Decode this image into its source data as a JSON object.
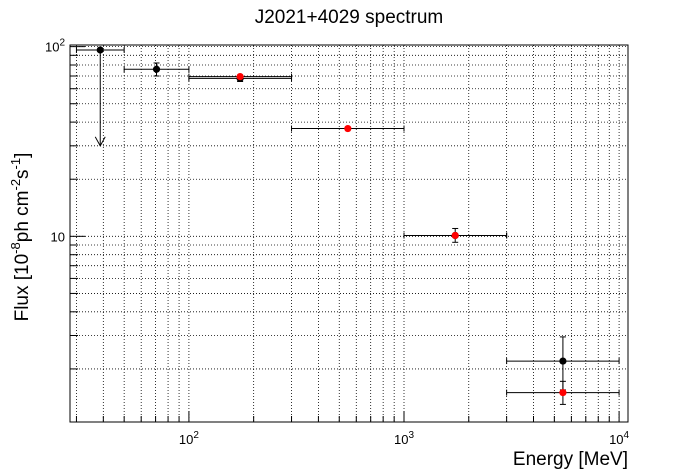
{
  "chart_data": {
    "type": "scatter",
    "title": "J2021+4029 spectrum",
    "xlabel": "Energy [MeV]",
    "ylabel_parts": [
      "Flux [10",
      "-8",
      "ph cm",
      "-2",
      "s",
      "-1",
      "]"
    ],
    "x_scale": "log",
    "y_scale": "log",
    "xlim": [
      28,
      11000
    ],
    "ylim": [
      1.05,
      102
    ],
    "grid": true,
    "x_ticks": [
      {
        "value": 100,
        "base": "10",
        "exp": "2"
      },
      {
        "value": 1000,
        "base": "10",
        "exp": "3"
      },
      {
        "value": 10000,
        "base": "10",
        "exp": "4"
      }
    ],
    "y_ticks": [
      {
        "value": 10,
        "label": "10"
      },
      {
        "value": 100,
        "base": "10",
        "exp": "2"
      }
    ],
    "series": [
      {
        "color": "#000000",
        "points": [
          {
            "x": 38.7,
            "xlo": 30,
            "xhi": 50,
            "y": 96,
            "ylo": 96,
            "yhi": 96,
            "upper_limit": true,
            "limit_to": 30
          },
          {
            "x": 70.7,
            "xlo": 50,
            "xhi": 100,
            "y": 76,
            "ylo": 70,
            "yhi": 82
          },
          {
            "x": 173,
            "xlo": 100,
            "xhi": 300,
            "y": 68,
            "ylo": 65.5,
            "yhi": 70.5
          },
          {
            "x": 1730,
            "xlo": 1000,
            "xhi": 3000,
            "y": 10.1,
            "ylo": 9.3,
            "yhi": 11
          },
          {
            "x": 5480,
            "xlo": 3000,
            "xhi": 10000,
            "y": 2.2,
            "ylo": 1.55,
            "yhi": 2.95
          }
        ]
      },
      {
        "color": "#ff0000",
        "points": [
          {
            "x": 173,
            "xlo": 100,
            "xhi": 300,
            "y": 69.5,
            "ylo": 69.5,
            "yhi": 69.5
          },
          {
            "x": 548,
            "xlo": 300,
            "xhi": 1000,
            "y": 37,
            "ylo": 37,
            "yhi": 37
          },
          {
            "x": 1730,
            "xlo": 1000,
            "xhi": 3000,
            "y": 10.1,
            "ylo": 10.1,
            "yhi": 10.1
          },
          {
            "x": 5480,
            "xlo": 3000,
            "xhi": 10000,
            "y": 1.5,
            "ylo": 1.3,
            "yhi": 1.72
          }
        ]
      }
    ]
  }
}
